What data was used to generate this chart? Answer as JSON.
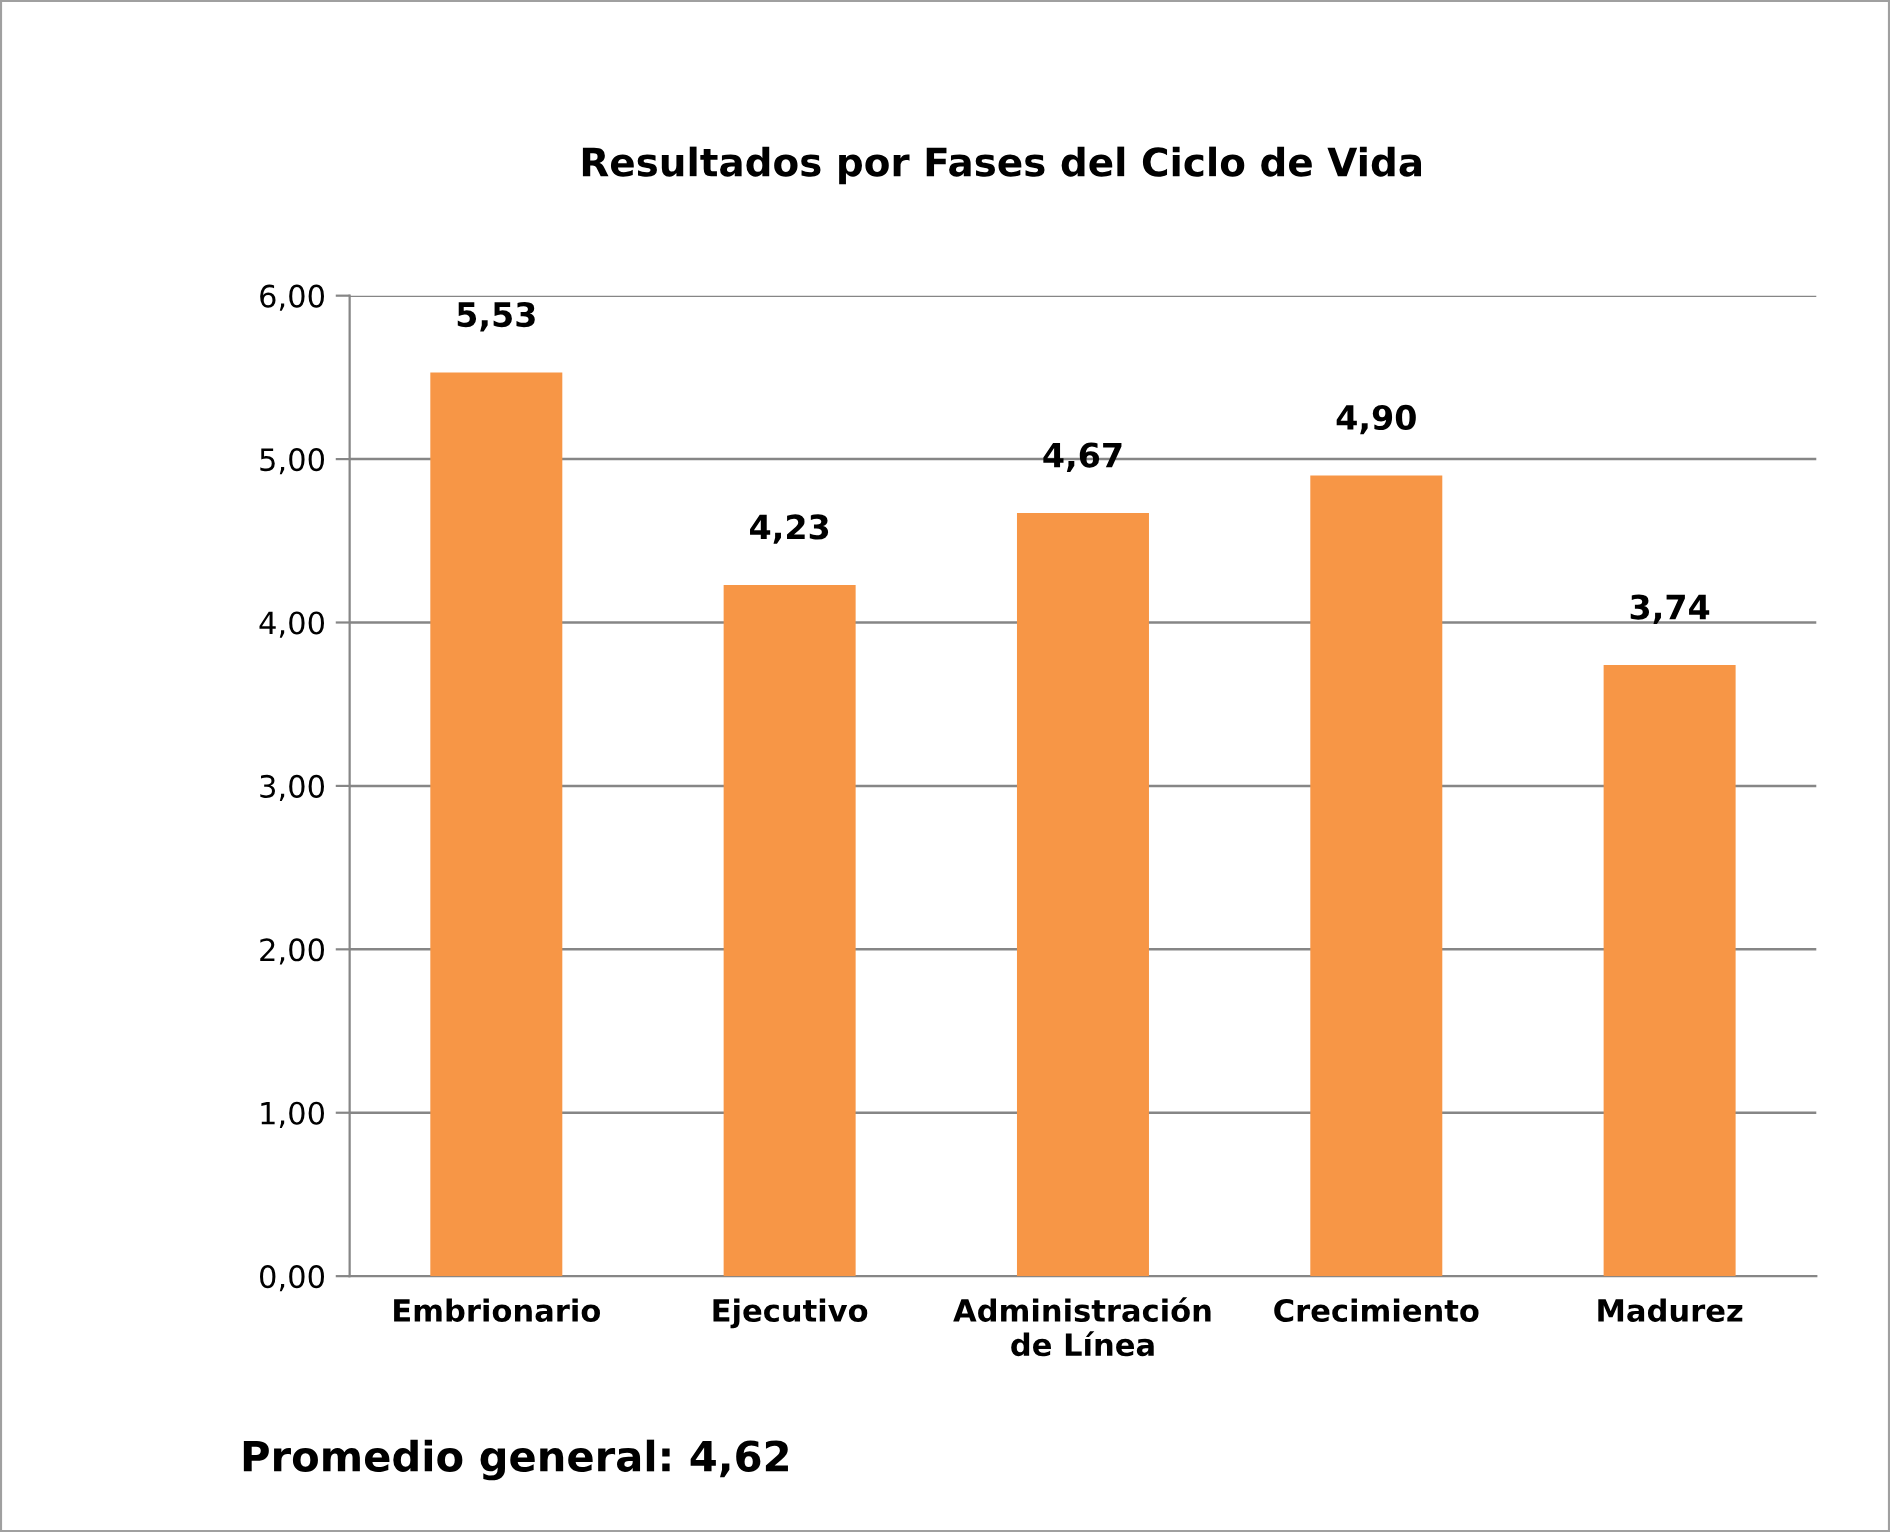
{
  "chart_data": {
    "type": "bar",
    "title": "Resultados por Fases del Ciclo de Vida",
    "categories": [
      "Embrionario",
      "Ejecutivo",
      "Administración\nde Línea",
      "Crecimiento",
      "Madurez"
    ],
    "values": [
      5.53,
      4.23,
      4.67,
      4.9,
      3.74
    ],
    "value_labels": [
      "5,53",
      "4,23",
      "4,67",
      "4,90",
      "3,74"
    ],
    "color": "#f79646",
    "ylim": [
      0,
      6
    ],
    "yticks": [
      {
        "value": 0,
        "label": "0,00"
      },
      {
        "value": 1,
        "label": "1,00"
      },
      {
        "value": 2,
        "label": "2,00"
      },
      {
        "value": 3,
        "label": "3,00"
      },
      {
        "value": 4,
        "label": "4,00"
      },
      {
        "value": 5,
        "label": "5,00"
      },
      {
        "value": 6,
        "label": "6,00"
      }
    ],
    "grid": "y",
    "annotations": [
      "Promedio general: 4,62"
    ]
  }
}
